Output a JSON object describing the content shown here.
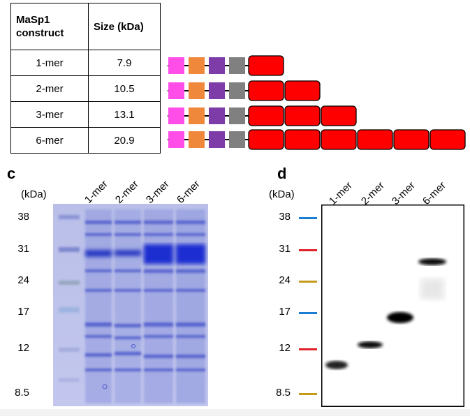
{
  "table": {
    "headers": [
      "MaSp1 construct",
      "Size (kDa)"
    ],
    "rows": [
      {
        "construct": "1-mer",
        "size": "7.9",
        "repeats": 1
      },
      {
        "construct": "2-mer",
        "size": "10.5",
        "repeats": 2
      },
      {
        "construct": "3-mer",
        "size": "13.1",
        "repeats": 3
      },
      {
        "construct": "6-mer",
        "size": "20.9",
        "repeats": 6
      }
    ]
  },
  "domain_colors": {
    "tag1": "#ff4de8",
    "tag2": "#f0883c",
    "tag3": "#7d3ca8",
    "tag4": "#808080",
    "repeat": "#ff0000"
  },
  "panel_c": {
    "letter": "c",
    "unit": "(kDa)",
    "markers": [
      "38",
      "31",
      "24",
      "17",
      "12",
      "8.5"
    ],
    "lanes": [
      "1-mer",
      "2-mer",
      "3-mer",
      "6-mer"
    ]
  },
  "panel_d": {
    "letter": "d",
    "unit": "(kDa)",
    "markers": [
      "38",
      "31",
      "24",
      "17",
      "12",
      "8.5"
    ],
    "marker_colors": [
      "#1a7fd4",
      "#e0202a",
      "#c49a1c",
      "#1a7fd4",
      "#e0202a",
      "#c49a1c"
    ],
    "lanes": [
      "1-mer",
      "2-mer",
      "3-mer",
      "6-mer"
    ]
  }
}
